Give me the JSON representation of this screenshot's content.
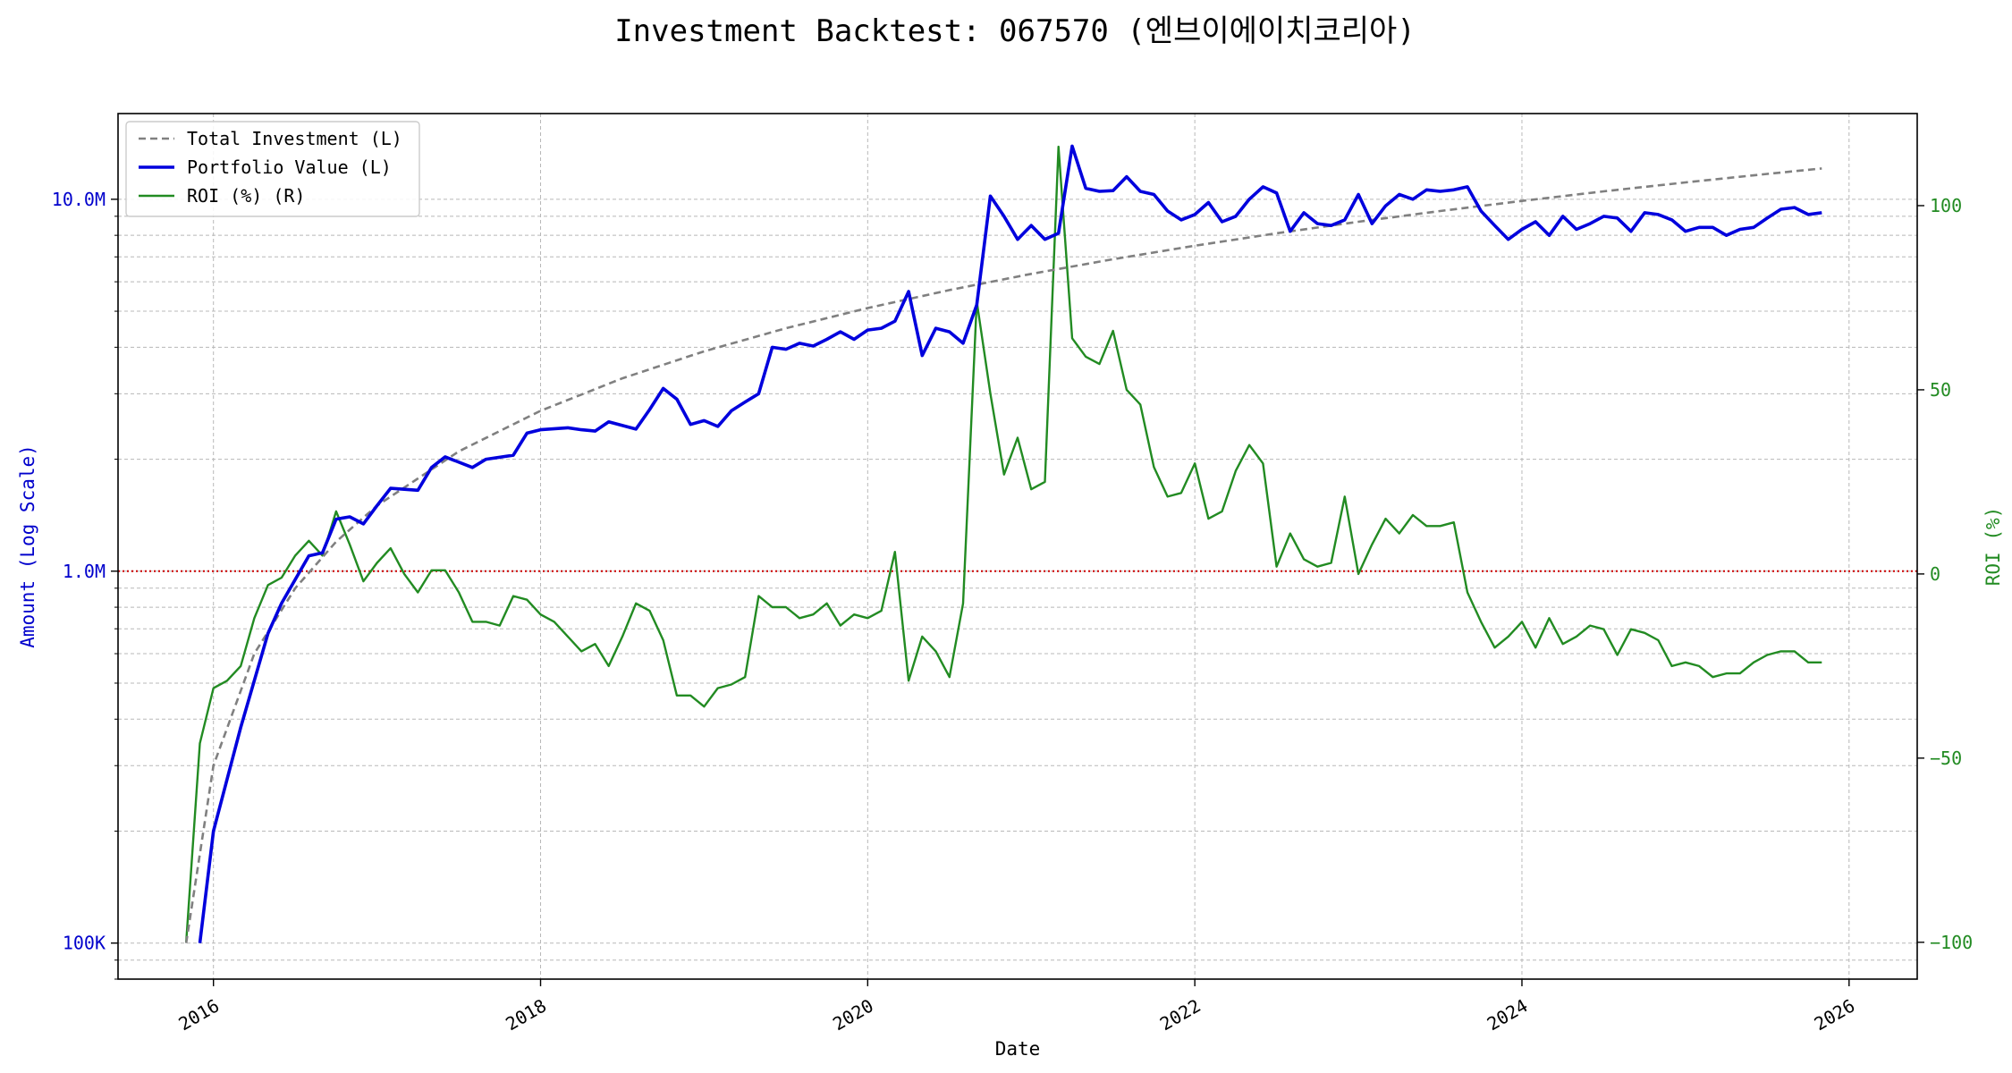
{
  "chart_data": {
    "type": "line",
    "title": "Investment Backtest: 067570 (엔브이에이치코리아)",
    "xlabel": "Date",
    "ylabel_left": "Amount (Log Scale)",
    "ylabel_right": "ROI (%)",
    "x_ticks": [
      "2016",
      "2018",
      "2020",
      "2022",
      "2024",
      "2026"
    ],
    "y_left_scale": "log",
    "y_left_range": [
      80000,
      17000000
    ],
    "y_left_ticks": [
      {
        "value": 100000,
        "label": "100K"
      },
      {
        "value": 1000000,
        "label": "1.0M"
      },
      {
        "value": 10000000,
        "label": "10.0M"
      }
    ],
    "y_right_range": [
      -110,
      125
    ],
    "y_right_ticks": [
      {
        "value": -100,
        "label": "−100"
      },
      {
        "value": -50,
        "label": "−50"
      },
      {
        "value": 0,
        "label": "0"
      },
      {
        "value": 50,
        "label": "50"
      },
      {
        "value": 100,
        "label": "100"
      }
    ],
    "x_range": [
      "2015-06-01",
      "2026-06-01"
    ],
    "reference_line": {
      "axis": "left",
      "value": 1000000,
      "color": "#cc0000",
      "style": "dotted"
    },
    "grid": true,
    "legend_position": "top-left",
    "colors": {
      "total_investment": "#808080",
      "portfolio_value": "#0000dd",
      "roi": "#228b22",
      "left_axis": "#0000cc",
      "right_axis": "#228b22"
    },
    "series": [
      {
        "name": "Total Investment (L)",
        "axis": "left",
        "style": "dashed",
        "x": [
          "2015-11-01",
          "2016-01-01",
          "2016-04-01",
          "2016-07-01",
          "2016-10-01",
          "2017-01-01",
          "2017-07-01",
          "2018-01-01",
          "2018-07-01",
          "2019-01-01",
          "2019-07-01",
          "2020-01-01",
          "2020-07-01",
          "2021-01-01",
          "2021-07-01",
          "2022-01-01",
          "2022-07-01",
          "2023-01-01",
          "2023-07-01",
          "2024-01-01",
          "2024-07-01",
          "2025-01-01",
          "2025-07-01",
          "2025-11-01"
        ],
        "values": [
          100000,
          300000,
          600000,
          900000,
          1200000,
          1500000,
          2100000,
          2700000,
          3300000,
          3900000,
          4500000,
          5100000,
          5700000,
          6300000,
          6900000,
          7500000,
          8100000,
          8700000,
          9300000,
          9900000,
          10500000,
          11100000,
          11700000,
          12100000
        ]
      },
      {
        "name": "Portfolio Value (L)",
        "axis": "left",
        "style": "solid",
        "x": [
          "2015-12-01",
          "2016-01-01",
          "2016-03-01",
          "2016-05-01",
          "2016-06-01",
          "2016-08-01",
          "2016-09-01",
          "2016-10-01",
          "2016-11-01",
          "2016-12-01",
          "2017-01-01",
          "2017-02-01",
          "2017-04-01",
          "2017-05-01",
          "2017-06-01",
          "2017-08-01",
          "2017-09-01",
          "2017-11-01",
          "2017-12-01",
          "2018-01-01",
          "2018-03-01",
          "2018-04-01",
          "2018-05-01",
          "2018-06-01",
          "2018-08-01",
          "2018-09-01",
          "2018-10-01",
          "2018-11-01",
          "2018-12-01",
          "2019-01-01",
          "2019-02-01",
          "2019-03-01",
          "2019-04-01",
          "2019-05-01",
          "2019-06-01",
          "2019-07-01",
          "2019-08-01",
          "2019-09-01",
          "2019-10-01",
          "2019-11-01",
          "2019-12-01",
          "2020-01-01",
          "2020-02-01",
          "2020-03-01",
          "2020-04-01",
          "2020-05-01",
          "2020-06-01",
          "2020-07-01",
          "2020-08-01",
          "2020-09-01",
          "2020-10-01",
          "2020-11-01",
          "2020-12-01",
          "2021-01-01",
          "2021-02-01",
          "2021-03-01",
          "2021-04-01",
          "2021-05-01",
          "2021-06-01",
          "2021-07-01",
          "2021-08-01",
          "2021-09-01",
          "2021-10-01",
          "2021-11-01",
          "2021-12-01",
          "2022-01-01",
          "2022-02-01",
          "2022-03-01",
          "2022-04-01",
          "2022-05-01",
          "2022-06-01",
          "2022-07-01",
          "2022-08-01",
          "2022-09-01",
          "2022-10-01",
          "2022-11-01",
          "2022-12-01",
          "2023-01-01",
          "2023-02-01",
          "2023-03-01",
          "2023-04-01",
          "2023-05-01",
          "2023-06-01",
          "2023-07-01",
          "2023-08-01",
          "2023-09-01",
          "2023-10-01",
          "2023-11-01",
          "2023-12-01",
          "2024-01-01",
          "2024-02-01",
          "2024-03-01",
          "2024-04-01",
          "2024-05-01",
          "2024-06-01",
          "2024-07-01",
          "2024-08-01",
          "2024-09-01",
          "2024-10-01",
          "2024-11-01",
          "2024-12-01",
          "2025-01-01",
          "2025-02-01",
          "2025-03-01",
          "2025-04-01",
          "2025-05-01",
          "2025-06-01",
          "2025-07-01",
          "2025-08-01",
          "2025-09-01",
          "2025-10-01",
          "2025-11-01"
        ],
        "values": [
          100000,
          200000,
          380000,
          680000,
          820000,
          1100000,
          1120000,
          1380000,
          1400000,
          1340000,
          1500000,
          1670000,
          1650000,
          1900000,
          2030000,
          1900000,
          2000000,
          2050000,
          2350000,
          2400000,
          2430000,
          2400000,
          2380000,
          2520000,
          2410000,
          2720000,
          3100000,
          2900000,
          2480000,
          2540000,
          2450000,
          2700000,
          2850000,
          3000000,
          4000000,
          3950000,
          4100000,
          4030000,
          4200000,
          4400000,
          4200000,
          4450000,
          4500000,
          4700000,
          5650000,
          3800000,
          4500000,
          4400000,
          4100000,
          5200000,
          10200000,
          9000000,
          7800000,
          8500000,
          7800000,
          8100000,
          13900000,
          10700000,
          10500000,
          10550000,
          11500000,
          10500000,
          10300000,
          9300000,
          8800000,
          9100000,
          9800000,
          8700000,
          9000000,
          10000000,
          10800000,
          10400000,
          8200000,
          9200000,
          8600000,
          8500000,
          8800000,
          10300000,
          8600000,
          9600000,
          10300000,
          10000000,
          10600000,
          10500000,
          10600000,
          10800000,
          9300000,
          8500000,
          7800000,
          8300000,
          8700000,
          8000000,
          9000000,
          8300000,
          8600000,
          9000000,
          8900000,
          8200000,
          9200000,
          9100000,
          8800000,
          8200000,
          8400000,
          8400000,
          8000000,
          8300000,
          8400000,
          8900000,
          9400000,
          9500000,
          9100000,
          9200000
        ]
      },
      {
        "name": "ROI (%) (R)",
        "axis": "right",
        "style": "solid",
        "x": [
          "2015-11-01",
          "2015-12-01",
          "2016-01-01",
          "2016-02-01",
          "2016-03-01",
          "2016-04-01",
          "2016-05-01",
          "2016-06-01",
          "2016-07-01",
          "2016-08-01",
          "2016-09-01",
          "2016-10-01",
          "2016-11-01",
          "2016-12-01",
          "2017-01-01",
          "2017-02-01",
          "2017-03-01",
          "2017-04-01",
          "2017-05-01",
          "2017-06-01",
          "2017-07-01",
          "2017-08-01",
          "2017-09-01",
          "2017-10-01",
          "2017-11-01",
          "2017-12-01",
          "2018-01-01",
          "2018-02-01",
          "2018-03-01",
          "2018-04-01",
          "2018-05-01",
          "2018-06-01",
          "2018-07-01",
          "2018-08-01",
          "2018-09-01",
          "2018-10-01",
          "2018-11-01",
          "2018-12-01",
          "2019-01-01",
          "2019-02-01",
          "2019-03-01",
          "2019-04-01",
          "2019-05-01",
          "2019-06-01",
          "2019-07-01",
          "2019-08-01",
          "2019-09-01",
          "2019-10-01",
          "2019-11-01",
          "2019-12-01",
          "2020-01-01",
          "2020-02-01",
          "2020-03-01",
          "2020-04-01",
          "2020-05-01",
          "2020-06-01",
          "2020-07-01",
          "2020-08-01",
          "2020-09-01",
          "2020-10-01",
          "2020-11-01",
          "2020-12-01",
          "2021-01-01",
          "2021-02-01",
          "2021-03-01",
          "2021-04-01",
          "2021-05-01",
          "2021-06-01",
          "2021-07-01",
          "2021-08-01",
          "2021-09-01",
          "2021-10-01",
          "2021-11-01",
          "2021-12-01",
          "2022-01-01",
          "2022-02-01",
          "2022-03-01",
          "2022-04-01",
          "2022-05-01",
          "2022-06-01",
          "2022-07-01",
          "2022-08-01",
          "2022-09-01",
          "2022-10-01",
          "2022-11-01",
          "2022-12-01",
          "2023-01-01",
          "2023-02-01",
          "2023-03-01",
          "2023-04-01",
          "2023-05-01",
          "2023-06-01",
          "2023-07-01",
          "2023-08-01",
          "2023-09-01",
          "2023-10-01",
          "2023-11-01",
          "2023-12-01",
          "2024-01-01",
          "2024-02-01",
          "2024-03-01",
          "2024-04-01",
          "2024-05-01",
          "2024-06-01",
          "2024-07-01",
          "2024-08-01",
          "2024-09-01",
          "2024-10-01",
          "2024-11-01",
          "2024-12-01",
          "2025-01-01",
          "2025-02-01",
          "2025-03-01",
          "2025-04-01",
          "2025-05-01",
          "2025-06-01",
          "2025-07-01",
          "2025-08-01",
          "2025-09-01",
          "2025-10-01",
          "2025-11-01"
        ],
        "values": [
          -100,
          -46,
          -31,
          -29,
          -25,
          -12,
          -3,
          -1,
          5,
          9,
          5,
          17,
          8,
          -2,
          3,
          7,
          0,
          -5,
          1,
          1,
          -5,
          -13,
          -13,
          -14,
          -6,
          -7,
          -11,
          -13,
          -17,
          -21,
          -19,
          -25,
          -17,
          -8,
          -10,
          -18,
          -33,
          -33,
          -36,
          -31,
          -30,
          -28,
          -6,
          -9,
          -9,
          -12,
          -11,
          -8,
          -14,
          -11,
          -12,
          -10,
          6,
          -29,
          -17,
          -21,
          -28,
          -8,
          74,
          49,
          27,
          37,
          23,
          25,
          116,
          64,
          59,
          57,
          66,
          50,
          46,
          29,
          21,
          22,
          30,
          15,
          17,
          28,
          35,
          30,
          2,
          11,
          4,
          2,
          3,
          21,
          0,
          8,
          15,
          11,
          16,
          13,
          13,
          14,
          -5,
          -13,
          -20,
          -17,
          -13,
          -20,
          -12,
          -19,
          -17,
          -14,
          -15,
          -22,
          -15,
          -16,
          -18,
          -25,
          -24,
          -25,
          -28,
          -27,
          -27,
          -24,
          -22,
          -21,
          -21,
          -24,
          -24
        ]
      }
    ]
  }
}
